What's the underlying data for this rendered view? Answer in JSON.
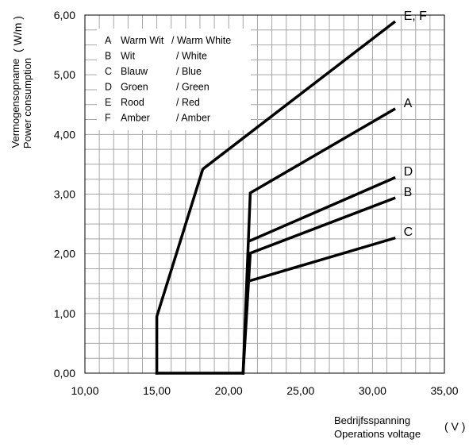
{
  "chart_data": {
    "type": "line",
    "xlim": [
      10,
      35
    ],
    "ylim": [
      0,
      6
    ],
    "x_major_ticks": [
      10,
      15,
      20,
      25,
      30,
      35
    ],
    "y_major_ticks": [
      0,
      1,
      2,
      3,
      4,
      5,
      6
    ],
    "x_minor_step": 1,
    "y_minor_step": 0.25,
    "x_tick_labels": [
      "10,00",
      "15,00",
      "20,00",
      "25,00",
      "30,00",
      "35,00"
    ],
    "y_tick_labels": [
      "0,00",
      "1,00",
      "2,00",
      "3,00",
      "4,00",
      "5,00",
      "6,00"
    ],
    "xlabel": [
      "Bedrijfsspanning",
      "Operations voltage"
    ],
    "xunit": "( V )",
    "ylabel": [
      "Vermogensopname",
      "Power consumption"
    ],
    "yunit": "( W/m )",
    "grid": true,
    "legend_position": "top-left",
    "legend": [
      {
        "key": "A",
        "nl": "Warm Wit",
        "en": "/ Warm White"
      },
      {
        "key": "B",
        "nl": "Wit",
        "en": "/ White"
      },
      {
        "key": "C",
        "nl": "Blauw",
        "en": "/ Blue"
      },
      {
        "key": "D",
        "nl": "Groen",
        "en": "/ Green"
      },
      {
        "key": "E",
        "nl": "Rood",
        "en": "/ Red"
      },
      {
        "key": "F",
        "nl": "Amber",
        "en": "/ Amber"
      }
    ],
    "series": [
      {
        "name": "E, F",
        "label_side": "end",
        "x": [
          15.0,
          15.0,
          18.2,
          31.5
        ],
        "y": [
          0.0,
          0.95,
          3.42,
          5.88
        ]
      },
      {
        "name": "A",
        "label_side": "end",
        "x": [
          21.0,
          21.5,
          31.5
        ],
        "y": [
          0.0,
          3.02,
          4.42
        ]
      },
      {
        "name": "D",
        "label_side": "end",
        "x": [
          21.5,
          31.5
        ],
        "y": [
          2.22,
          3.27
        ]
      },
      {
        "name": "B",
        "label_side": "end",
        "x": [
          21.0,
          21.5,
          31.5
        ],
        "y": [
          0.0,
          2.01,
          2.93
        ]
      },
      {
        "name": "C",
        "label_side": "end",
        "x": [
          21.5,
          31.5
        ],
        "y": [
          1.55,
          2.26
        ]
      },
      {
        "name": "",
        "x": [
          15.0,
          21.0
        ],
        "y": [
          0.0,
          0.0
        ]
      }
    ],
    "line_color": "#000000",
    "grid_color": "#a6a6a6"
  }
}
